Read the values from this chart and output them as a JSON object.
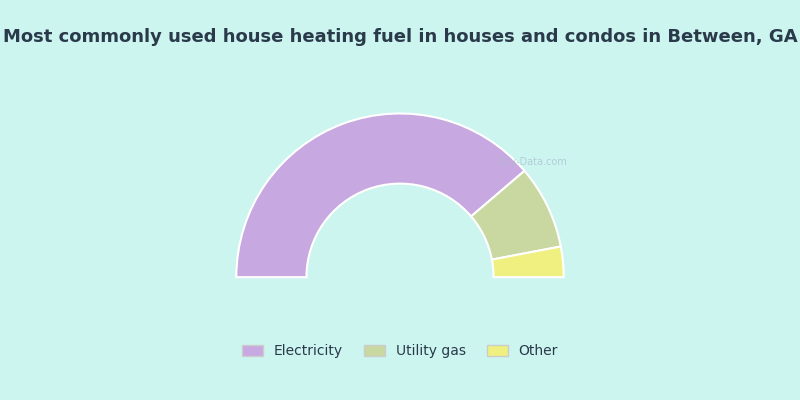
{
  "title": "Most commonly used house heating fuel in houses and condos in Between, GA",
  "segments": [
    {
      "label": "Electricity",
      "value": 77.5,
      "color": "#c8a8e0"
    },
    {
      "label": "Utility gas",
      "value": 16.5,
      "color": "#c8d8a0"
    },
    {
      "label": "Other",
      "value": 6.0,
      "color": "#f0f080"
    }
  ],
  "background_color": "#ccf5f0",
  "chart_bg_start": "#e8f5ee",
  "chart_bg_end": "#ffffff",
  "title_color": "#2a3a4a",
  "title_fontsize": 13,
  "legend_fontsize": 10
}
